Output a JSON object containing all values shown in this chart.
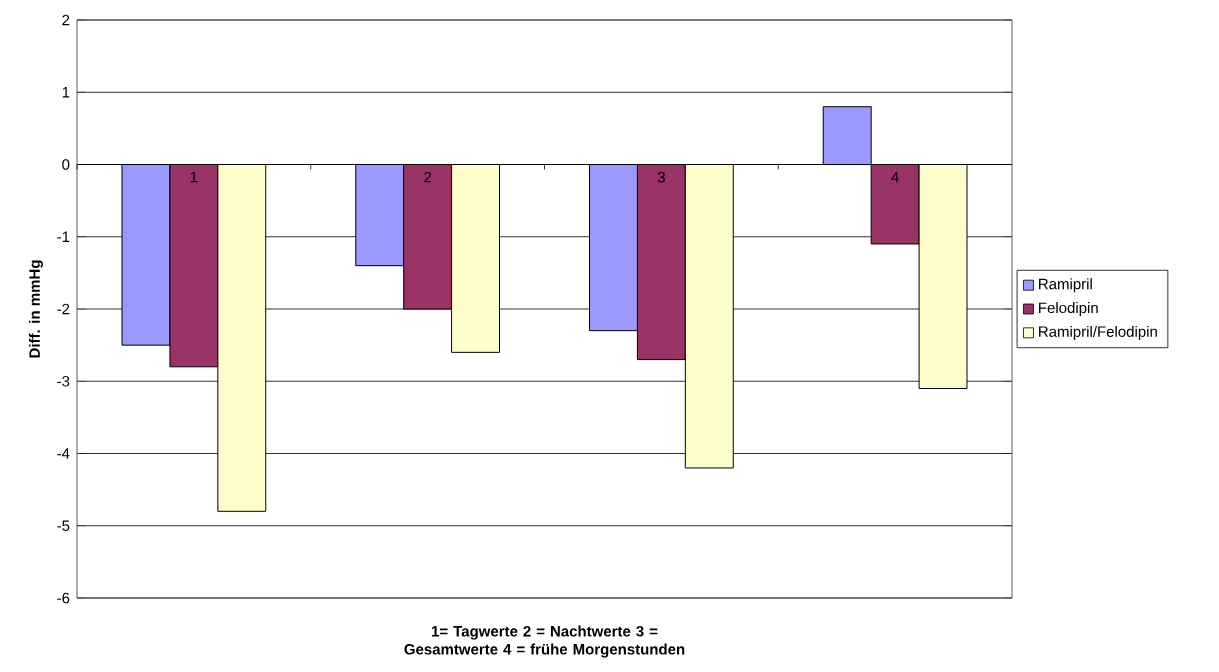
{
  "chart_data": {
    "type": "bar",
    "categories": [
      "1",
      "2",
      "3",
      "4"
    ],
    "xlabel": "1= Tagwerte        2 = Nachtwerte        3 = Gesamtwerte        4 = frühe Morgenstunden",
    "ylabel": "Diff. in mmHg",
    "series": [
      {
        "name": "Ramipril",
        "color": "#9999ff",
        "values": [
          -2.5,
          -1.4,
          -2.3,
          0.8
        ]
      },
      {
        "name": "Felodipin",
        "color": "#993366",
        "values": [
          -2.8,
          -2.0,
          -2.7,
          -1.1
        ]
      },
      {
        "name": "Ramipril/Felodipin",
        "color": "#ffffcc",
        "values": [
          -4.8,
          -2.6,
          -4.2,
          -3.1
        ]
      }
    ],
    "ylim": [
      -6,
      2
    ],
    "yticks": [
      -6,
      -5,
      -4,
      -3,
      -2,
      -1,
      0,
      1,
      2
    ],
    "grid": "y",
    "legend": "right"
  }
}
